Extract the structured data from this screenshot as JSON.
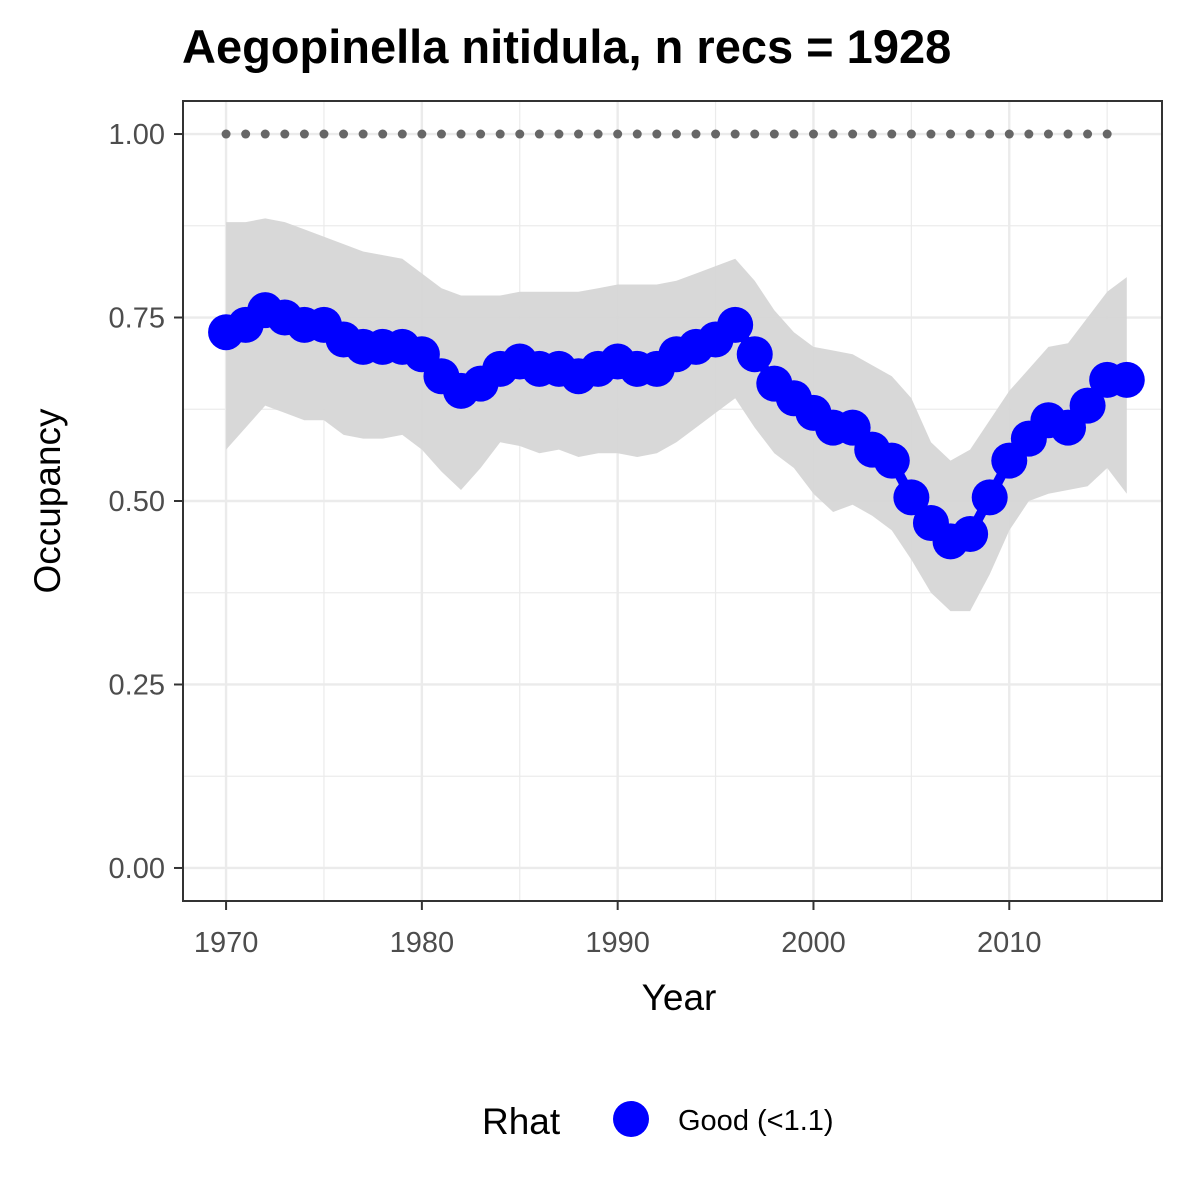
{
  "chart_data": {
    "type": "line",
    "title": "Aegopinella nitidula, n recs = 1928",
    "xlabel": "Year",
    "ylabel": "Occupancy",
    "xlim": [
      1967.8,
      2017.8
    ],
    "ylim": [
      -0.045,
      1.045
    ],
    "x_ticks": [
      1970,
      1980,
      1990,
      2000,
      2010
    ],
    "x_tick_labels": [
      "1970",
      "1980",
      "1990",
      "2000",
      "2010"
    ],
    "y_ticks": [
      0,
      0.25,
      0.5,
      0.75,
      1
    ],
    "y_tick_labels": [
      "0.00",
      "0.25",
      "0.50",
      "0.75",
      "1.00"
    ],
    "grid": true,
    "legend_position": "bottom",
    "legend": {
      "title": "Rhat",
      "entries": [
        {
          "label": "Good (<1.1)",
          "color": "#0000ff"
        }
      ]
    },
    "colors": {
      "series": "#0000ff",
      "ribbon": "#d6d6d6",
      "reference": "#666666"
    },
    "series": [
      {
        "x": [
          1970,
          1971,
          1972,
          1973,
          1974,
          1975,
          1976,
          1977,
          1978,
          1979,
          1980,
          1981,
          1982,
          1983,
          1984,
          1985,
          1986,
          1987,
          1988,
          1989,
          1990,
          1991,
          1992,
          1993,
          1994,
          1995,
          1996,
          1997,
          1998,
          1999,
          2000,
          2001,
          2002,
          2003,
          2004,
          2005,
          2006,
          2007,
          2008,
          2009,
          2010,
          2011,
          2012,
          2013,
          2014,
          2015,
          2016
        ],
        "values": [
          0.73,
          0.74,
          0.76,
          0.75,
          0.74,
          0.74,
          0.72,
          0.71,
          0.71,
          0.71,
          0.7,
          0.67,
          0.65,
          0.66,
          0.68,
          0.69,
          0.68,
          0.68,
          0.67,
          0.68,
          0.69,
          0.68,
          0.68,
          0.7,
          0.71,
          0.72,
          0.74,
          0.7,
          0.66,
          0.64,
          0.62,
          0.6,
          0.6,
          0.57,
          0.555,
          0.505,
          0.47,
          0.445,
          0.455,
          0.505,
          0.555,
          0.585,
          0.61,
          0.6,
          0.63,
          0.665,
          0.665
        ],
        "lower": [
          0.57,
          0.6,
          0.63,
          0.62,
          0.61,
          0.61,
          0.59,
          0.585,
          0.585,
          0.59,
          0.57,
          0.54,
          0.515,
          0.545,
          0.58,
          0.575,
          0.565,
          0.57,
          0.56,
          0.565,
          0.565,
          0.56,
          0.565,
          0.58,
          0.6,
          0.62,
          0.64,
          0.6,
          0.565,
          0.545,
          0.51,
          0.485,
          0.495,
          0.48,
          0.46,
          0.42,
          0.375,
          0.35,
          0.35,
          0.4,
          0.46,
          0.5,
          0.51,
          0.515,
          0.52,
          0.545,
          0.51
        ],
        "upper": [
          0.88,
          0.88,
          0.885,
          0.88,
          0.87,
          0.86,
          0.85,
          0.84,
          0.835,
          0.83,
          0.81,
          0.79,
          0.78,
          0.78,
          0.78,
          0.785,
          0.785,
          0.785,
          0.785,
          0.79,
          0.795,
          0.795,
          0.795,
          0.8,
          0.81,
          0.82,
          0.83,
          0.8,
          0.76,
          0.73,
          0.71,
          0.705,
          0.7,
          0.685,
          0.67,
          0.64,
          0.58,
          0.555,
          0.57,
          0.61,
          0.65,
          0.68,
          0.71,
          0.715,
          0.75,
          0.785,
          0.805
        ]
      }
    ],
    "reference_line": {
      "x": [
        1970,
        1971,
        1972,
        1973,
        1974,
        1975,
        1976,
        1977,
        1978,
        1979,
        1980,
        1981,
        1982,
        1983,
        1984,
        1985,
        1986,
        1987,
        1988,
        1989,
        1990,
        1991,
        1992,
        1993,
        1994,
        1995,
        1996,
        1997,
        1998,
        1999,
        2000,
        2001,
        2002,
        2003,
        2004,
        2005,
        2006,
        2007,
        2008,
        2009,
        2010,
        2011,
        2012,
        2013,
        2014,
        2015
      ],
      "value": 1.0
    }
  }
}
